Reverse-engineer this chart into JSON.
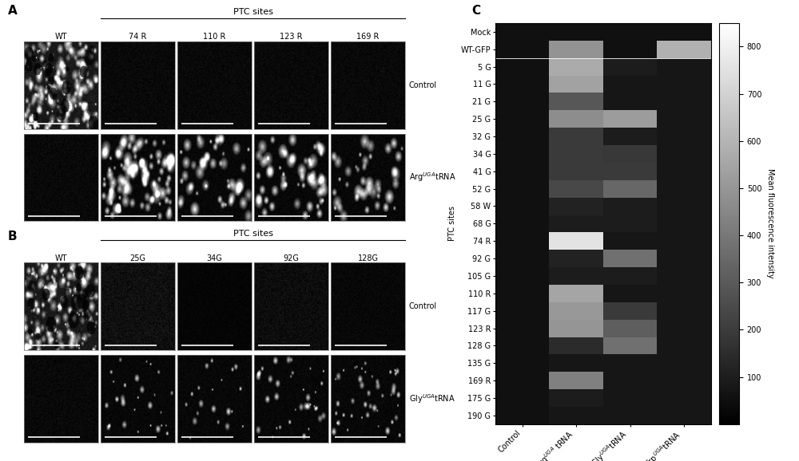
{
  "title_A": "A",
  "title_B": "B",
  "title_C": "C",
  "col_labels_A": [
    "74 R",
    "110 R",
    "123 R",
    "169 R"
  ],
  "col_labels_B": [
    "25G",
    "34G",
    "92G",
    "128G"
  ],
  "heatmap_rows": [
    "Mock",
    "WT-GFP",
    "5 G",
    "11 G",
    "21 G",
    "25 G",
    "32 G",
    "34 G",
    "41 G",
    "52 G",
    "58 W",
    "68 G",
    "74 R",
    "92 G",
    "105 G",
    "110 R",
    "117 G",
    "123 R",
    "128 G",
    "135 G",
    "169 R",
    "175 G",
    "190 G"
  ],
  "heatmap_cols": [
    "Control",
    "Arg^UGA tRNA",
    "Gly^UGA tRNA",
    "Trp^UGA tRNA"
  ],
  "heatmap_ylabel": "Mean fluorescence intensity",
  "colorbar_ticks": [
    100,
    200,
    300,
    400,
    500,
    600,
    700,
    800
  ],
  "vmin": 0,
  "vmax": 850,
  "heatmap_data": [
    [
      55,
      55,
      55,
      55
    ],
    [
      55,
      490,
      55,
      590
    ],
    [
      55,
      570,
      95,
      75
    ],
    [
      55,
      540,
      75,
      75
    ],
    [
      55,
      290,
      75,
      75
    ],
    [
      55,
      470,
      520,
      75
    ],
    [
      55,
      195,
      95,
      75
    ],
    [
      55,
      195,
      190,
      75
    ],
    [
      55,
      195,
      195,
      75
    ],
    [
      55,
      240,
      345,
      75
    ],
    [
      55,
      115,
      95,
      75
    ],
    [
      55,
      95,
      95,
      75
    ],
    [
      55,
      760,
      75,
      75
    ],
    [
      55,
      115,
      375,
      75
    ],
    [
      55,
      95,
      95,
      75
    ],
    [
      55,
      550,
      75,
      75
    ],
    [
      55,
      505,
      195,
      75
    ],
    [
      55,
      495,
      315,
      75
    ],
    [
      55,
      145,
      375,
      75
    ],
    [
      55,
      75,
      75,
      75
    ],
    [
      55,
      425,
      75,
      75
    ],
    [
      55,
      95,
      75,
      75
    ],
    [
      55,
      75,
      75,
      75
    ]
  ],
  "bg_color": "#ffffff",
  "font_size_labels": 7,
  "font_size_axis": 7,
  "font_size_panel": 11
}
